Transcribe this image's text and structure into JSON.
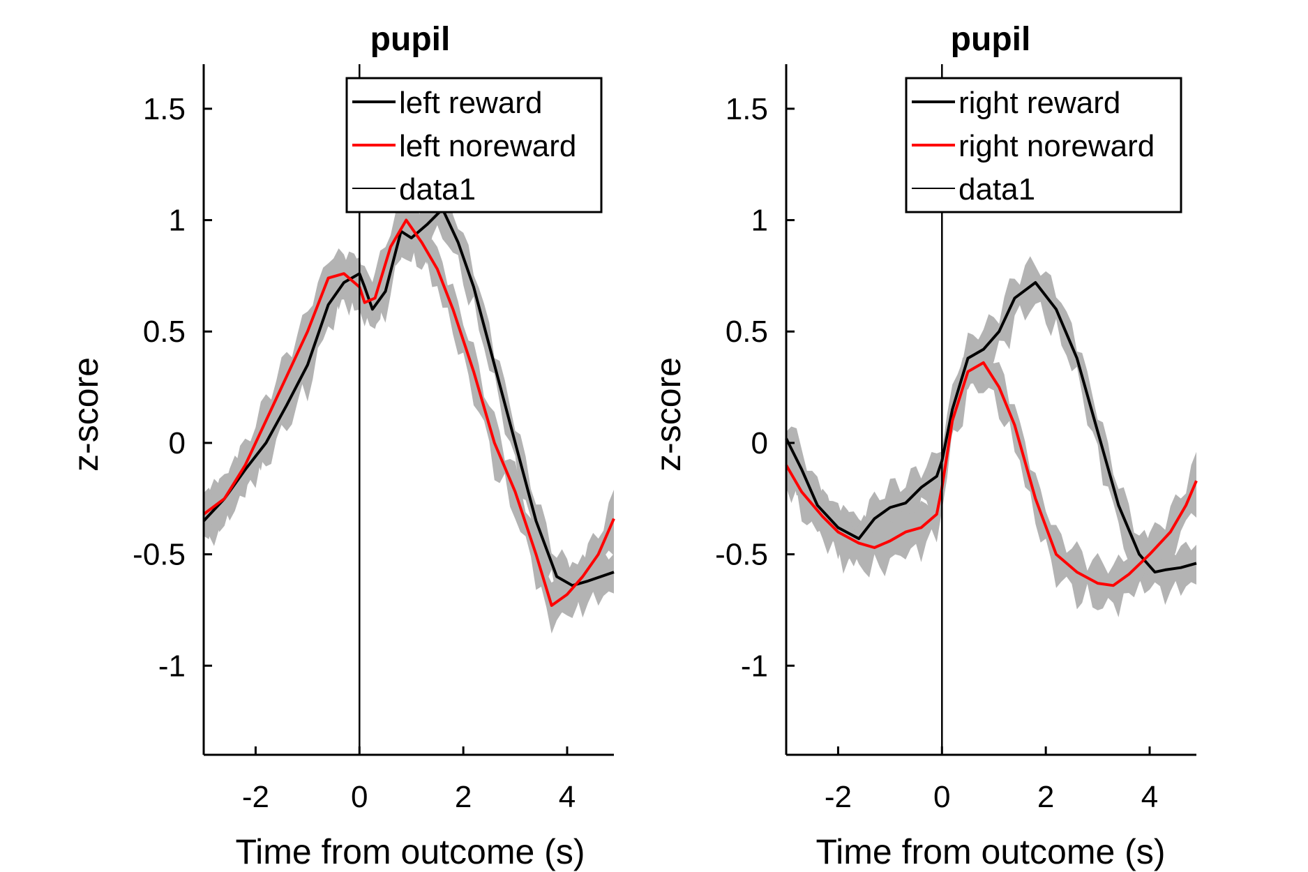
{
  "chart_data": [
    {
      "type": "line",
      "title": "pupil",
      "xlabel": "Time from outcome (s)",
      "ylabel": "z-score",
      "xlim": [
        -3,
        4.9
      ],
      "ylim": [
        -1.4,
        1.7
      ],
      "xticks": [
        -2,
        0,
        2,
        4
      ],
      "xtick_labels": [
        "-2",
        "0",
        "2",
        "4"
      ],
      "yticks": [
        -1,
        -0.5,
        0,
        0.5,
        1,
        1.5
      ],
      "ytick_labels": [
        "-1",
        "-0.5",
        "0",
        "0.5",
        "1",
        "1.5"
      ],
      "grid": false,
      "legend_position": "top-right",
      "vertical_line_x": 0,
      "legend": [
        "left reward",
        "left noreward",
        "data1"
      ],
      "series": [
        {
          "name": "left reward",
          "color": "#000000",
          "x": [
            -3.0,
            -2.6,
            -2.2,
            -1.8,
            -1.4,
            -1.0,
            -0.6,
            -0.3,
            0.0,
            0.1,
            0.25,
            0.5,
            0.8,
            1.0,
            1.3,
            1.6,
            1.9,
            2.2,
            2.6,
            3.0,
            3.4,
            3.8,
            4.1,
            4.4,
            4.9
          ],
          "y": [
            -0.35,
            -0.25,
            -0.12,
            0.0,
            0.17,
            0.35,
            0.62,
            0.72,
            0.76,
            0.7,
            0.6,
            0.68,
            0.95,
            0.92,
            0.98,
            1.05,
            0.9,
            0.7,
            0.35,
            0.0,
            -0.35,
            -0.6,
            -0.64,
            -0.62,
            -0.58
          ]
        },
        {
          "name": "left noreward",
          "color": "#ff0000",
          "x": [
            -3.0,
            -2.6,
            -2.2,
            -1.8,
            -1.4,
            -1.0,
            -0.6,
            -0.3,
            0.0,
            0.1,
            0.3,
            0.6,
            0.9,
            1.2,
            1.5,
            1.8,
            2.2,
            2.6,
            3.0,
            3.4,
            3.7,
            4.0,
            4.3,
            4.6,
            4.9
          ],
          "y": [
            -0.32,
            -0.25,
            -0.1,
            0.1,
            0.3,
            0.5,
            0.74,
            0.76,
            0.7,
            0.63,
            0.65,
            0.88,
            1.0,
            0.9,
            0.78,
            0.6,
            0.32,
            0.0,
            -0.22,
            -0.5,
            -0.73,
            -0.68,
            -0.6,
            -0.5,
            -0.34
          ]
        }
      ]
    },
    {
      "type": "line",
      "title": "pupil",
      "xlabel": "Time from outcome (s)",
      "ylabel": "z-score",
      "xlim": [
        -3,
        4.9
      ],
      "ylim": [
        -1.4,
        1.7
      ],
      "xticks": [
        -2,
        0,
        2,
        4
      ],
      "xtick_labels": [
        "-2",
        "0",
        "2",
        "4"
      ],
      "yticks": [
        -1,
        -0.5,
        0,
        0.5,
        1,
        1.5
      ],
      "ytick_labels": [
        "-1",
        "-0.5",
        "0",
        "0.5",
        "1",
        "1.5"
      ],
      "grid": false,
      "legend_position": "top-right",
      "vertical_line_x": 0,
      "legend": [
        "right reward",
        "right noreward",
        "data1"
      ],
      "series": [
        {
          "name": "right reward",
          "color": "#000000",
          "x": [
            -3.0,
            -2.7,
            -2.4,
            -2.0,
            -1.6,
            -1.3,
            -1.0,
            -0.7,
            -0.4,
            -0.1,
            0.0,
            0.2,
            0.5,
            0.8,
            1.1,
            1.4,
            1.8,
            2.2,
            2.6,
            3.0,
            3.4,
            3.8,
            4.1,
            4.3,
            4.6,
            4.9
          ],
          "y": [
            0.02,
            -0.12,
            -0.28,
            -0.38,
            -0.43,
            -0.34,
            -0.29,
            -0.27,
            -0.2,
            -0.15,
            -0.08,
            0.15,
            0.38,
            0.42,
            0.5,
            0.65,
            0.72,
            0.6,
            0.38,
            0.05,
            -0.28,
            -0.5,
            -0.58,
            -0.57,
            -0.56,
            -0.54
          ]
        },
        {
          "name": "right noreward",
          "color": "#ff0000",
          "x": [
            -3.0,
            -2.7,
            -2.3,
            -2.0,
            -1.6,
            -1.3,
            -1.0,
            -0.7,
            -0.4,
            -0.1,
            0.0,
            0.2,
            0.5,
            0.8,
            1.1,
            1.4,
            1.8,
            2.2,
            2.6,
            3.0,
            3.3,
            3.6,
            4.0,
            4.4,
            4.7,
            4.9
          ],
          "y": [
            -0.1,
            -0.22,
            -0.33,
            -0.4,
            -0.45,
            -0.47,
            -0.44,
            -0.4,
            -0.38,
            -0.32,
            -0.2,
            0.1,
            0.32,
            0.36,
            0.25,
            0.08,
            -0.25,
            -0.5,
            -0.58,
            -0.63,
            -0.64,
            -0.59,
            -0.5,
            -0.4,
            -0.28,
            -0.17
          ]
        }
      ]
    }
  ]
}
